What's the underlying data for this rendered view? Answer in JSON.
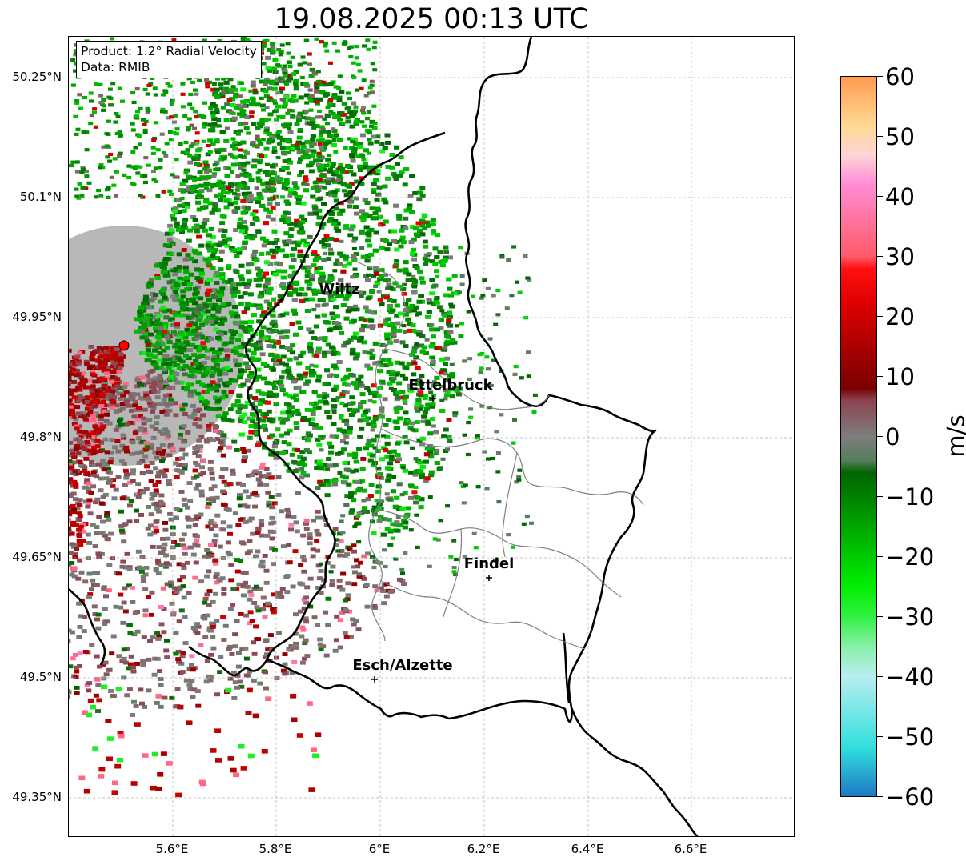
{
  "title": "19.08.2025 00:13 UTC",
  "info": {
    "product": "Product: 1.2° Radial Velocity",
    "data_source": "Data: RMIB"
  },
  "lat_ticks": [
    "50.25°N",
    "50.1°N",
    "49.95°N",
    "49.8°N",
    "49.65°N",
    "49.5°N",
    "49.35°N"
  ],
  "lon_ticks": [
    "5.6°E",
    "5.8°E",
    "6°E",
    "6.2°E",
    "6.4°E",
    "6.6°E"
  ],
  "cities": [
    {
      "name": "Wiltz"
    },
    {
      "name": "Ettelbruck"
    },
    {
      "name": "Findel"
    },
    {
      "name": "Esch/Alzette"
    }
  ],
  "colorbar": {
    "unit": "m/s",
    "ticks": [
      "60",
      "50",
      "40",
      "30",
      "20",
      "10",
      "0",
      "−10",
      "−20",
      "−30",
      "−40",
      "−50",
      "−60"
    ],
    "min": -60,
    "max": 60,
    "stops": [
      {
        "v": -60,
        "c": "#1f78c4"
      },
      {
        "v": -52,
        "c": "#30dede"
      },
      {
        "v": -40,
        "c": "#b8eef0"
      },
      {
        "v": -35,
        "c": "#88f0a8"
      },
      {
        "v": -30,
        "c": "#30f040"
      },
      {
        "v": -25,
        "c": "#00ee00"
      },
      {
        "v": -18,
        "c": "#00bb00"
      },
      {
        "v": -6,
        "c": "#006400"
      },
      {
        "v": -4,
        "c": "#567d5a"
      },
      {
        "v": 0,
        "c": "#7d7d7d"
      },
      {
        "v": 6,
        "c": "#8c4450"
      },
      {
        "v": 8,
        "c": "#7a0000"
      },
      {
        "v": 22,
        "c": "#dd0000"
      },
      {
        "v": 28,
        "c": "#ff1010"
      },
      {
        "v": 30,
        "c": "#ff5a68"
      },
      {
        "v": 42,
        "c": "#ff8cd4"
      },
      {
        "v": 47,
        "c": "#ffd6d6"
      },
      {
        "v": 52,
        "c": "#ffd890"
      },
      {
        "v": 60,
        "c": "#ff9a50"
      }
    ]
  },
  "colors": {
    "radar_site": "#ff0000",
    "border": "#000000",
    "canton": "#808080",
    "grid": "#b0b0b0"
  }
}
